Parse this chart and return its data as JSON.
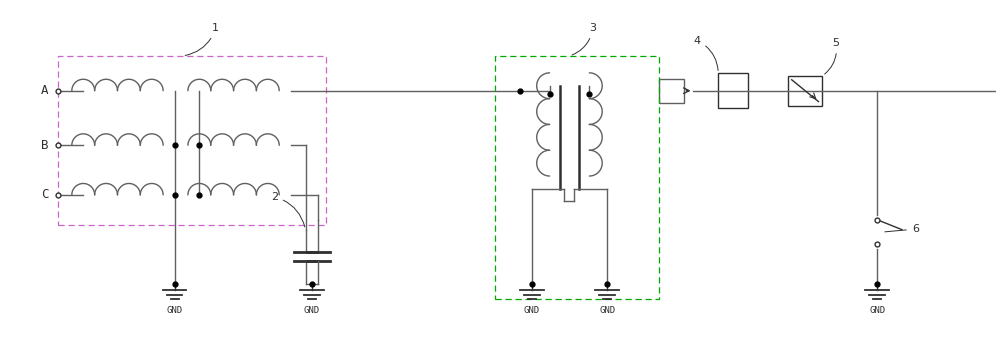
{
  "bg_color": "#ffffff",
  "line_color": "#606060",
  "dark_line": "#303030",
  "dot_color": "#000000",
  "dash_pink": "#cc66cc",
  "dash_green": "#00aa00",
  "figsize": [
    10.0,
    3.6
  ],
  "dpi": 100,
  "coil_r": 0.115,
  "coil_rv": 0.13,
  "phase_labels": [
    "A",
    "B",
    "C"
  ],
  "gnd_label": "GND"
}
